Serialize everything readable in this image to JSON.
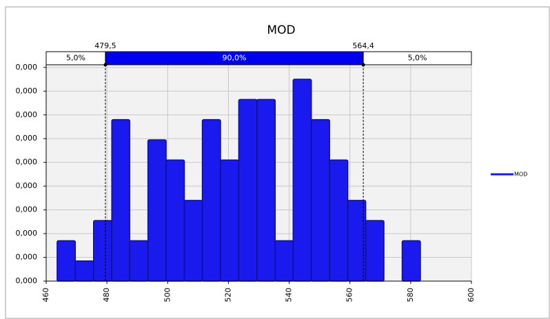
{
  "chart_data": {
    "type": "histogram",
    "title": "MOD",
    "bins": [
      463.6,
      469.6,
      475.6,
      481.6,
      487.5,
      493.5,
      499.5,
      505.5,
      511.4,
      517.4,
      523.4,
      529.4,
      535.4,
      541.3,
      547.3,
      553.3,
      559.3,
      565.2,
      571.2,
      577.2,
      583.2
    ],
    "series": [
      {
        "name": "MOD",
        "color": "#1a1aee",
        "values": [
          8.5e-05,
          4.25e-05,
          0.0001275,
          0.00034,
          8.5e-05,
          0.0002975,
          0.000255,
          0.00017,
          0.00034,
          0.000255,
          0.0003825,
          0.0003825,
          8.5e-05,
          0.000425,
          0.00034,
          0.000255,
          0.00017,
          0.0001275,
          0,
          8.5e-05
        ]
      }
    ],
    "xlim": [
      460,
      600
    ],
    "xticks": [
      460,
      480,
      500,
      520,
      540,
      560,
      580,
      600
    ],
    "ylim": [
      0,
      0.000457
    ],
    "yticks": [
      {
        "value": 0,
        "label": "0,000"
      },
      {
        "value": 5e-05,
        "label": "0,000"
      },
      {
        "value": 0.0001,
        "label": "0,000"
      },
      {
        "value": 0.00015,
        "label": "0,000"
      },
      {
        "value": 0.0002,
        "label": "0,000"
      },
      {
        "value": 0.00025,
        "label": "0,000"
      },
      {
        "value": 0.0003,
        "label": "0,000"
      },
      {
        "value": 0.00035,
        "label": "0,000"
      },
      {
        "value": 0.0004,
        "label": "0,000"
      },
      {
        "value": 0.00045,
        "label": "0,000"
      }
    ],
    "delimiters": [
      {
        "value": 479.5,
        "label": "479,5"
      },
      {
        "value": 564.4,
        "label": "564,4"
      }
    ],
    "percentages": [
      {
        "value": 5,
        "label": "5,0%"
      },
      {
        "value": 90,
        "label": "90,0%"
      },
      {
        "value": 5,
        "label": "5,0%"
      }
    ],
    "grid": true,
    "legend": "right"
  }
}
